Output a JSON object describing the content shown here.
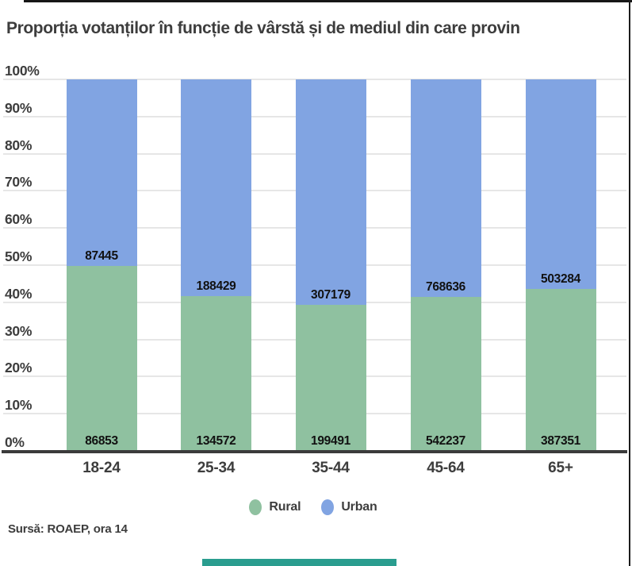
{
  "source": "Sursă: ROAEP, ora 14",
  "colors": {
    "rural": "#8fc1a0",
    "urban": "#81a4e2",
    "title_text": "#3d3d3d",
    "gridline": "#e6e6e6",
    "axis_line": "#3b3b3b",
    "value_label": "#111111",
    "window_edge": "#1c1c1c",
    "scrollbar_thumb": "#2a9d8f"
  },
  "chart_data": {
    "type": "bar",
    "stacked": true,
    "normalized": "percent",
    "title": "Proporția votanților în funcție de vârstă și de mediul din care provin",
    "categories": [
      "18-24",
      "25-34",
      "35-44",
      "45-64",
      "65+"
    ],
    "series": [
      {
        "name": "Rural",
        "color": "#8fc1a0",
        "values": [
          86853,
          134572,
          199491,
          542237,
          387351
        ]
      },
      {
        "name": "Urban",
        "color": "#81a4e2",
        "values": [
          87445,
          188429,
          307179,
          768636,
          503284
        ]
      }
    ],
    "y_ticks": [
      "0%",
      "10%",
      "20%",
      "30%",
      "40%",
      "50%",
      "60%",
      "70%",
      "80%",
      "90%",
      "100%"
    ],
    "ylim": [
      0,
      100
    ],
    "grid": true,
    "legend_position": "bottom",
    "value_labels": "raw counts shown at base of each segment"
  }
}
